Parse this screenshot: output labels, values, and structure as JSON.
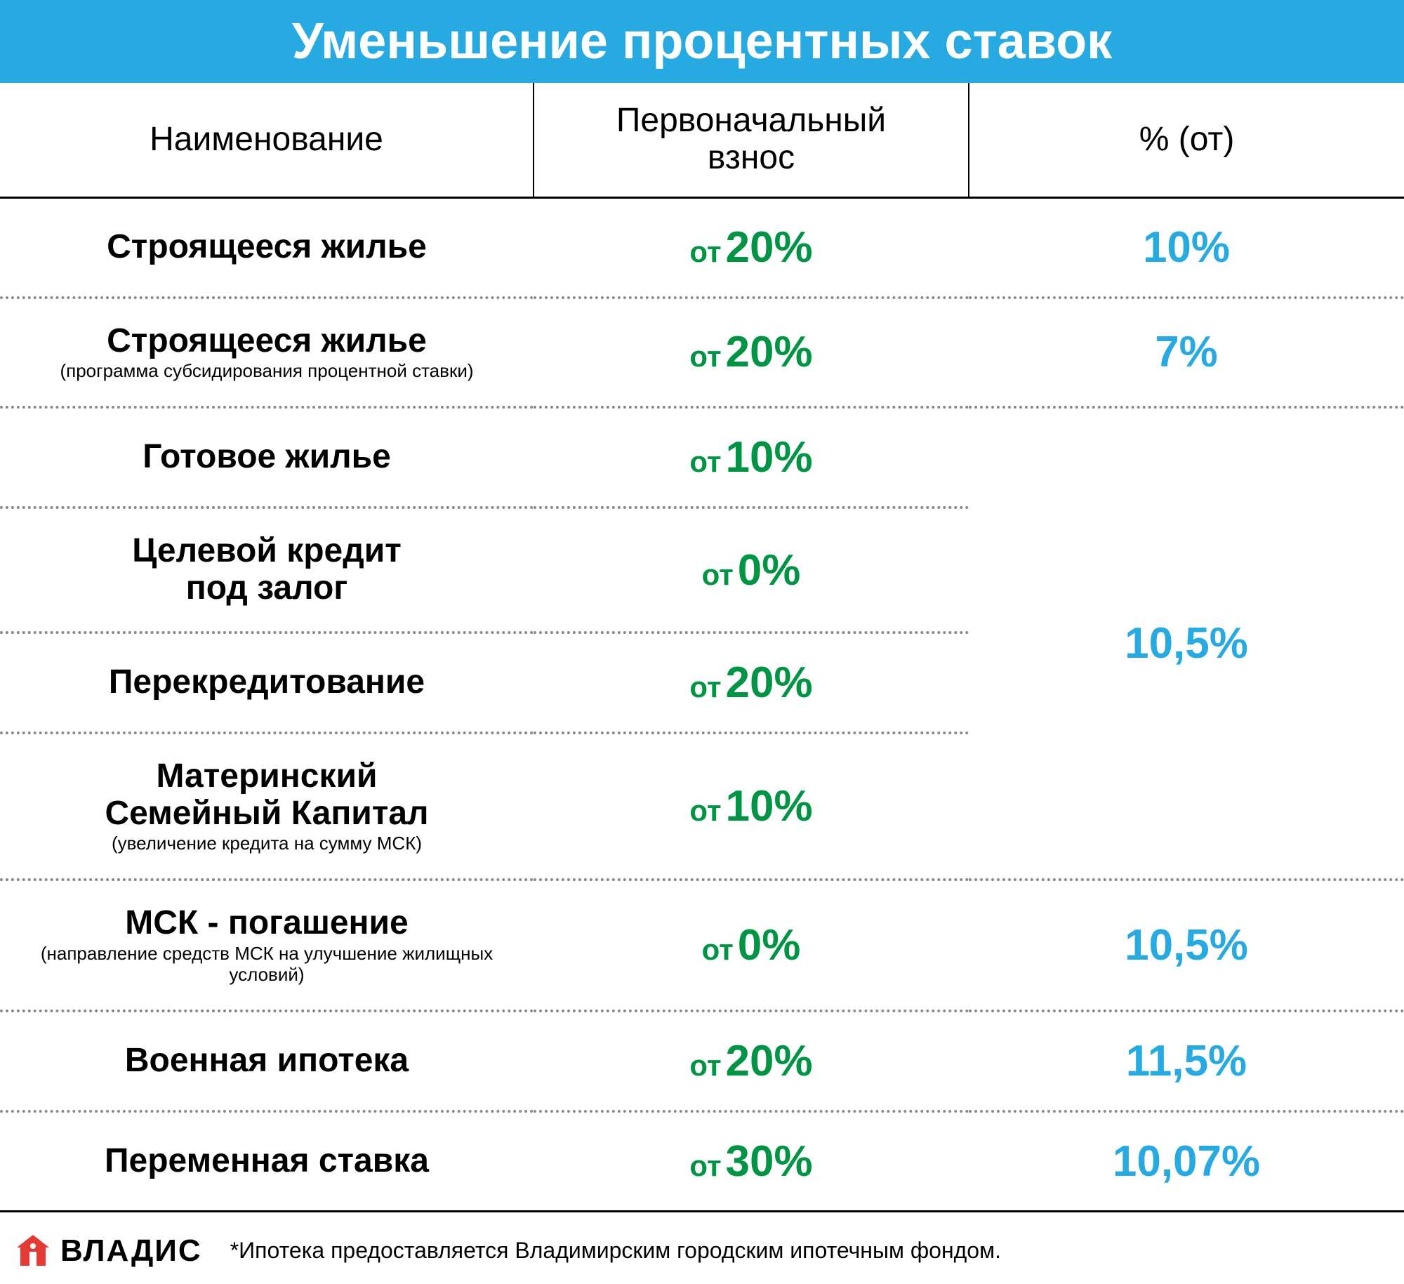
{
  "title": "Уменьшение процентных ставок",
  "headers": {
    "name": "Наименование",
    "deposit": "Первоначальный взнос",
    "rate": "% (от)"
  },
  "deposit_prefix": "от",
  "colors": {
    "title_bg": "#27a9e1",
    "title_text": "#ffffff",
    "name_text": "#000000",
    "deposit_text": "#009444",
    "rate_text": "#27a9e1",
    "border": "#000000",
    "dotted_border": "#888888"
  },
  "fonts": {
    "title_size": 72,
    "header_size": 48,
    "name_size": 48,
    "name_sub_size": 26,
    "deposit_prefix_size": 42,
    "deposit_value_size": 62,
    "rate_value_size": 62,
    "footnote_size": 32,
    "logo_size": 44
  },
  "rows": [
    {
      "name": "Строящееся жилье",
      "sub": "",
      "deposit": "20%",
      "rate": "10%",
      "rate_span": 1
    },
    {
      "name": "Строящееся жилье",
      "sub": "(программа субсидирования процентной ставки)",
      "deposit": "20%",
      "rate": "7%",
      "rate_span": 1
    },
    {
      "name": "Готовое жилье",
      "sub": "",
      "deposit": "10%",
      "rate": "10,5%",
      "rate_span": 4
    },
    {
      "name": "Целевой кредит под залог",
      "sub": "",
      "deposit": "0%",
      "rate": "",
      "rate_span": 0
    },
    {
      "name": "Перекредитование",
      "sub": "",
      "deposit": "20%",
      "rate": "",
      "rate_span": 0
    },
    {
      "name": "Материнский Семейный Капитал",
      "sub": "(увеличение кредита на сумму МСК)",
      "deposit": "10%",
      "rate": "",
      "rate_span": 0
    },
    {
      "name": "МСК - погашение",
      "sub": "(направление средств МСК на улучшение жилищных условий)",
      "deposit": "0%",
      "rate": "10,5%",
      "rate_span": 1
    },
    {
      "name": "Военная ипотека",
      "sub": "",
      "deposit": "20%",
      "rate": "11,5%",
      "rate_span": 1
    },
    {
      "name": "Переменная ставка",
      "sub": "",
      "deposit": "30%",
      "rate": "10,07%",
      "rate_span": 1
    }
  ],
  "logo": {
    "text": "ВЛАДИС"
  },
  "footnote": "*Ипотека предоставляется Владимирским городским ипотечным фондом."
}
